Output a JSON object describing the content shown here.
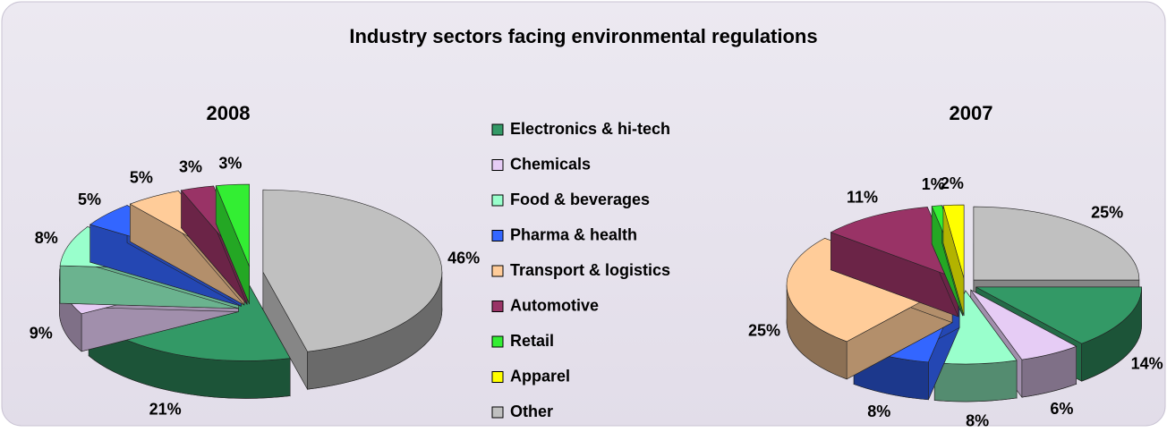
{
  "chart_data": {
    "type": "pie",
    "title": "Industry sectors facing environmental regulations",
    "categories": [
      "Electronics & hi-tech",
      "Chemicals",
      "Food & beverages",
      "Pharma & health",
      "Transport & logistics",
      "Automotive",
      "Retail",
      "Apparel",
      "Other"
    ],
    "colors": [
      "#339966",
      "#e6ccf5",
      "#99ffcc",
      "#3366ff",
      "#ffcc99",
      "#993366",
      "#33ee33",
      "#ffff00",
      "#c0c0c0"
    ],
    "series": [
      {
        "name": "2008",
        "values": [
          21,
          9,
          8,
          5,
          5,
          3,
          3,
          null,
          46
        ],
        "value_labels": [
          "21%",
          "9%",
          "8%",
          "5%",
          "5%",
          "3%",
          "3%",
          null,
          "46%"
        ]
      },
      {
        "name": "2007",
        "values": [
          14,
          6,
          8,
          8,
          25,
          11,
          1,
          2,
          25
        ],
        "value_labels": [
          "14%",
          "6%",
          "8%",
          "8%",
          "25%",
          "11%",
          "1%",
          "2%",
          "25%"
        ]
      }
    ]
  }
}
